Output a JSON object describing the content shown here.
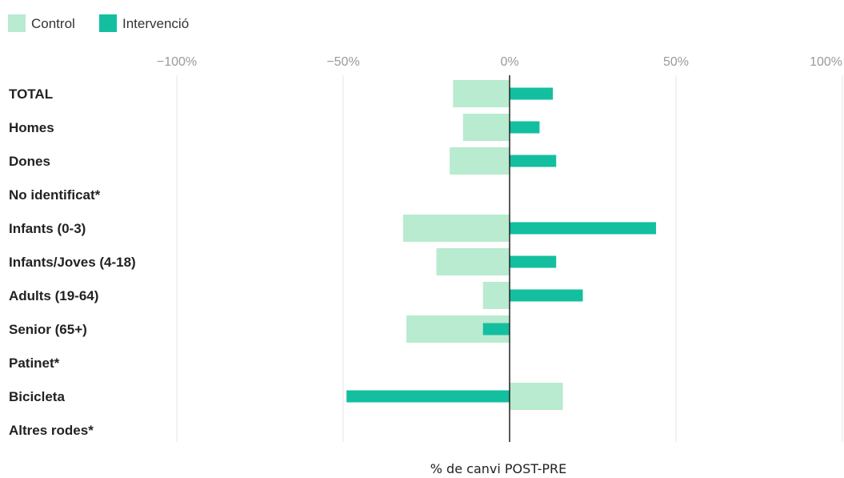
{
  "chart_data": {
    "type": "bar",
    "orientation": "horizontal",
    "xlabel": "% de canvi POST-PRE",
    "xlim": [
      -100,
      100
    ],
    "ticks": [
      -100,
      -50,
      0,
      50,
      100
    ],
    "tick_labels": [
      "−100%",
      "−50%",
      "0%",
      "50%",
      "100%"
    ],
    "grid": true,
    "legend_position": "top-left",
    "categories": [
      "TOTAL",
      "Homes",
      "Dones",
      "No identificat*",
      "Infants (0-3)",
      "Infants/Joves (4-18)",
      "Adults (19-64)",
      "Senior (65+)",
      "Patinet*",
      "Bicicleta",
      "Altres rodes*"
    ],
    "series": [
      {
        "name": "Control",
        "color": "#b8ebcf",
        "values": [
          -17,
          -14,
          -18,
          null,
          -32,
          -22,
          -8,
          -31,
          null,
          16,
          null
        ]
      },
      {
        "name": "Intervenció",
        "color": "#13bf9f",
        "values": [
          13,
          9,
          14,
          null,
          44,
          14,
          22,
          -8,
          null,
          -49,
          null
        ]
      }
    ]
  }
}
